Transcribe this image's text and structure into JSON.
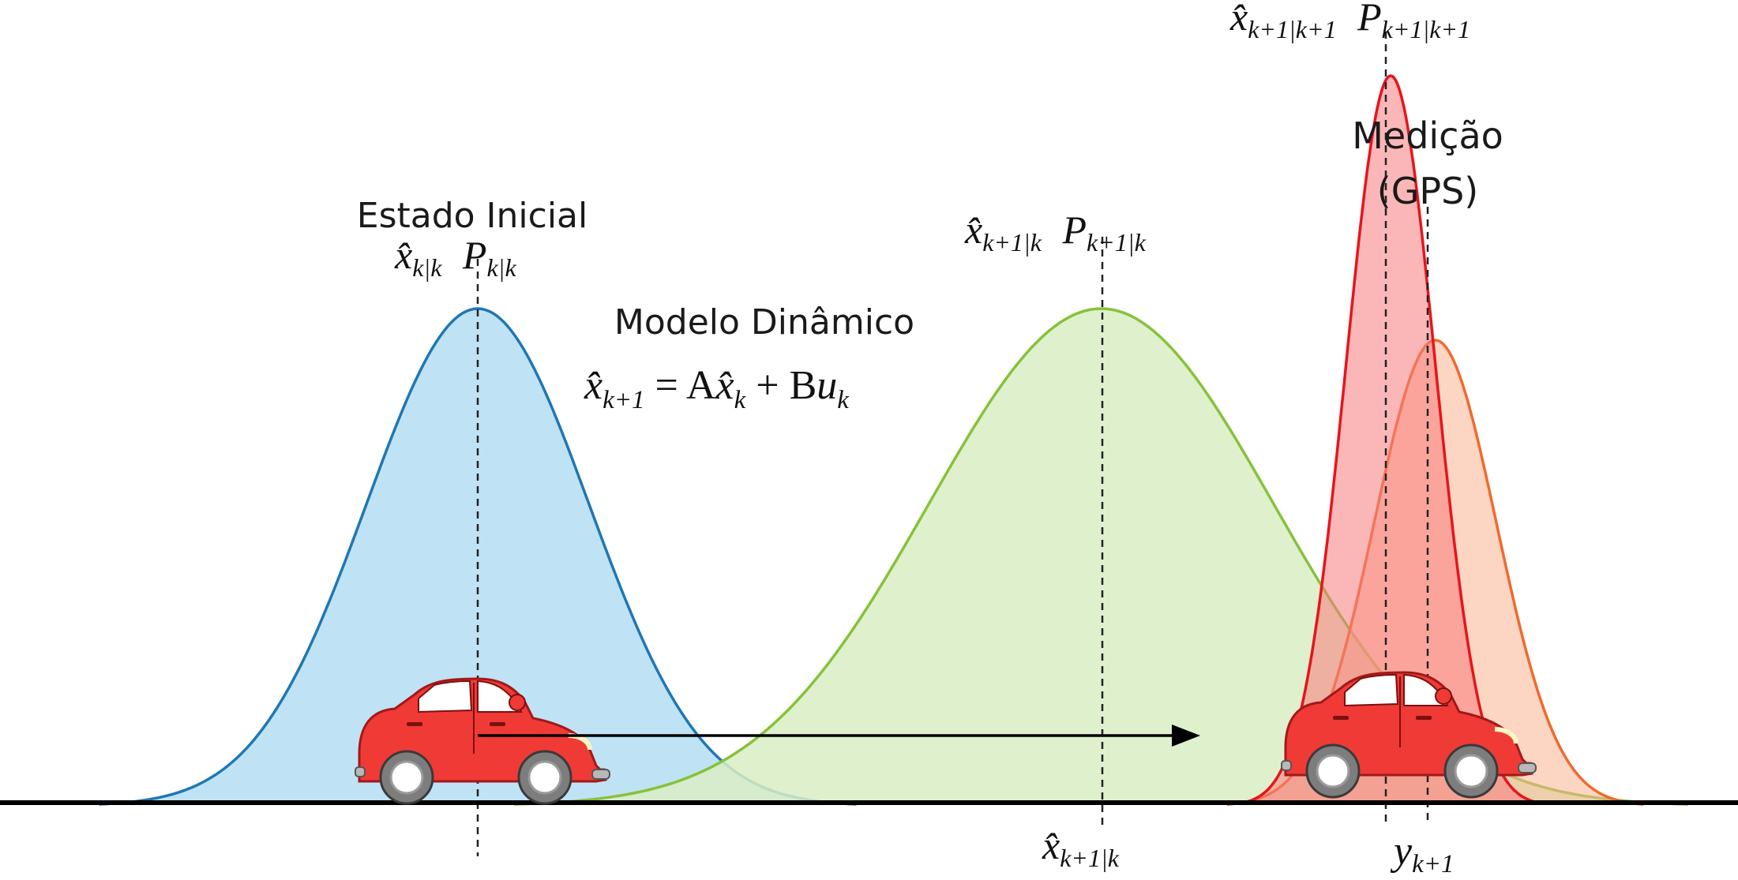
{
  "labels": {
    "initial_title": "Estado Inicial",
    "initial_x": "x̂",
    "initial_x_sub": "k|k",
    "initial_p": "P",
    "initial_p_sub": "k|k",
    "model_title": "Modelo Dinâmico",
    "model_eq_lhs": "x̂",
    "model_eq_lhs_sub": "k+1",
    "model_eq_mid": " = A",
    "model_eq_x": "x̂",
    "model_eq_x_sub": "k",
    "model_eq_plus": " + B",
    "model_eq_u": "u",
    "model_eq_u_sub": "k",
    "pred_x": "x̂",
    "pred_x_sub": "k+1|k",
    "pred_p": "P",
    "pred_p_sub": "k+1|k",
    "upd_x": "x̂",
    "upd_x_sub": "k+1|k+1",
    "upd_p": "P",
    "upd_p_sub": "k+1|k+1",
    "meas_title_1": "Medição",
    "meas_title_2": "(GPS)",
    "axis_pred_x": "x̂",
    "axis_pred_x_sub": "k+1|k",
    "axis_meas_y": "y",
    "axis_meas_y_sub": "k+1"
  },
  "distributions": [
    {
      "name": "initial-estimate",
      "mean": 0.0,
      "std": 1.0,
      "stroke": "#1f77b4",
      "fill": "#bfe3f5"
    },
    {
      "name": "predicted-estimate",
      "mean": 5.6,
      "std": 1.55,
      "stroke": "#86c23a",
      "fill": "#d9edc4"
    },
    {
      "name": "measurement",
      "mean": 8.6,
      "std": 0.55,
      "stroke": "#f06a2e",
      "fill": "#f9b48f"
    },
    {
      "name": "updated-estimate",
      "mean": 8.2,
      "std": 0.4,
      "stroke": "#e8141b",
      "fill": "#f77b7e"
    }
  ],
  "colors": {
    "car_body": "#f03a36",
    "axis": "#000000",
    "arrow": "#000000"
  },
  "icons": [
    "car-icon",
    "car-icon"
  ]
}
